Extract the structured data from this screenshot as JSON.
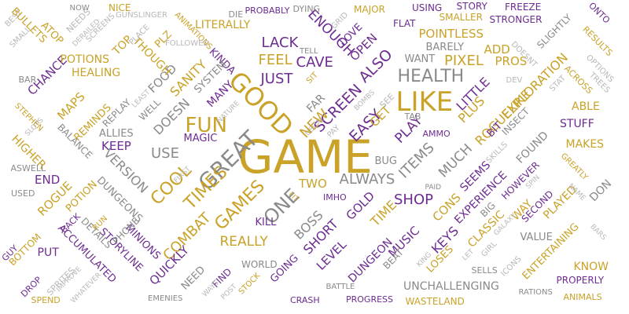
{
  "palette": {
    "gold": "#c9a227",
    "purple": "#6c2c91",
    "gray": "#8a8a8a",
    "lightgray": "#b8b8b8"
  },
  "words": [
    {
      "text": "GAME",
      "color": "gold"
    },
    {
      "text": "LIKE",
      "color": "gold"
    },
    {
      "text": "HEALTH",
      "color": "gray"
    },
    {
      "text": "GOOD",
      "color": "gold"
    },
    {
      "text": "FUN",
      "color": "gold"
    },
    {
      "text": "GREAT",
      "color": "gray"
    },
    {
      "text": "JUST",
      "color": "purple"
    },
    {
      "text": "FEEL",
      "color": "gold"
    },
    {
      "text": "LACK",
      "color": "purple"
    },
    {
      "text": "CAVE",
      "color": "purple"
    },
    {
      "text": "ENOUGH",
      "color": "purple"
    },
    {
      "text": "PIXEL",
      "color": "gold"
    },
    {
      "text": "POINTLESS",
      "color": "gold"
    },
    {
      "text": "WANT",
      "color": "gray"
    },
    {
      "text": "ADD",
      "color": "gold"
    },
    {
      "text": "PROS",
      "color": "gold"
    },
    {
      "text": "SCREEN",
      "color": "purple"
    },
    {
      "text": "ALSO",
      "color": "purple"
    },
    {
      "text": "EASY",
      "color": "purple"
    },
    {
      "text": "ALWAYS",
      "color": "gray"
    },
    {
      "text": "TWO",
      "color": "gold"
    },
    {
      "text": "SHOP",
      "color": "purple"
    },
    {
      "text": "USE",
      "color": "gray"
    },
    {
      "text": "KEEP",
      "color": "purple"
    },
    {
      "text": "MAGIC",
      "color": "purple"
    },
    {
      "text": "ALLIES",
      "color": "gray"
    },
    {
      "text": "COOL",
      "color": "gold"
    },
    {
      "text": "TIMES",
      "color": "gold"
    },
    {
      "text": "GAMES",
      "color": "gold"
    },
    {
      "text": "ONE",
      "color": "gray"
    },
    {
      "text": "BOSS",
      "color": "gray"
    },
    {
      "text": "REALLY",
      "color": "gold"
    },
    {
      "text": "KILL",
      "color": "purple"
    },
    {
      "text": "COMBAT",
      "color": "gold"
    },
    {
      "text": "QUICKLY",
      "color": "purple"
    },
    {
      "text": "VERSION",
      "color": "gray"
    },
    {
      "text": "DUNGEONS",
      "color": "gray"
    },
    {
      "text": "POTION",
      "color": "gold"
    },
    {
      "text": "ROGUE",
      "color": "gold"
    },
    {
      "text": "END",
      "color": "purple"
    },
    {
      "text": "HIGHER",
      "color": "gold"
    },
    {
      "text": "BALANCE",
      "color": "gray"
    },
    {
      "text": "CHANCE",
      "color": "purple"
    },
    {
      "text": "POTIONS",
      "color": "gold"
    },
    {
      "text": "HEALING",
      "color": "gold"
    },
    {
      "text": "MAPS",
      "color": "gold"
    },
    {
      "text": "REMINDS",
      "color": "gold"
    },
    {
      "text": "REPLAY",
      "color": "gray"
    },
    {
      "text": "WELL",
      "color": "gray"
    },
    {
      "text": "DOESN",
      "color": "gray"
    },
    {
      "text": "FOOD",
      "color": "gray"
    },
    {
      "text": "SANITY",
      "color": "gold"
    },
    {
      "text": "MANY",
      "color": "purple"
    },
    {
      "text": "THOUGH",
      "color": "gold"
    },
    {
      "text": "LITERALLY",
      "color": "gold"
    },
    {
      "text": "KINDA",
      "color": "purple"
    },
    {
      "text": "SYSTEM",
      "color": "gray"
    },
    {
      "text": "ITEMS",
      "color": "gray"
    },
    {
      "text": "MUCH",
      "color": "gray"
    },
    {
      "text": "PLAY",
      "color": "purple"
    },
    {
      "text": "LITTLE",
      "color": "purple"
    },
    {
      "text": "PLUS",
      "color": "gold"
    },
    {
      "text": "ROGUELIKE",
      "color": "gold"
    },
    {
      "text": "EXPLORATION",
      "color": "gold"
    },
    {
      "text": "STUFF",
      "color": "purple"
    },
    {
      "text": "ABLE",
      "color": "gold"
    },
    {
      "text": "MAKES",
      "color": "gold"
    },
    {
      "text": "FOUND",
      "color": "gray"
    },
    {
      "text": "SLIGHTLY",
      "color": "gray"
    },
    {
      "text": "BARELY",
      "color": "gray"
    },
    {
      "text": "EXPERIENCE",
      "color": "purple"
    },
    {
      "text": "SEEMS",
      "color": "purple"
    },
    {
      "text": "CONS",
      "color": "gold"
    },
    {
      "text": "HOWEVER",
      "color": "purple"
    },
    {
      "text": "SECOND",
      "color": "purple"
    },
    {
      "text": "PLAYED",
      "color": "gold"
    },
    {
      "text": "WAY",
      "color": "gold"
    },
    {
      "text": "CLASSIC",
      "color": "gold"
    },
    {
      "text": "VALUE",
      "color": "gray"
    },
    {
      "text": "DON",
      "color": "gray"
    },
    {
      "text": "ENTERTAINING",
      "color": "gold"
    },
    {
      "text": "KNOW",
      "color": "gold"
    },
    {
      "text": "LEVEL",
      "color": "purple"
    },
    {
      "text": "SHORT",
      "color": "purple"
    },
    {
      "text": "GOLD",
      "color": "purple"
    },
    {
      "text": "TIME",
      "color": "gold"
    },
    {
      "text": "DUNGEON",
      "color": "purple"
    },
    {
      "text": "MUSIC",
      "color": "purple"
    },
    {
      "text": "BEAT",
      "color": "gray"
    },
    {
      "text": "KEYS",
      "color": "purple"
    },
    {
      "text": "LOSES",
      "color": "gold"
    },
    {
      "text": "UNCHALLENGING",
      "color": "gray"
    },
    {
      "text": "WASTELAND",
      "color": "gold"
    },
    {
      "text": "PROGRESS",
      "color": "purple"
    },
    {
      "text": "STORYLINE",
      "color": "purple"
    },
    {
      "text": "MINIONS",
      "color": "purple"
    },
    {
      "text": "PHONE",
      "color": "gray"
    },
    {
      "text": "DETAILS",
      "color": "gray"
    },
    {
      "text": "ACCUMULATED",
      "color": "purple"
    },
    {
      "text": "PUT",
      "color": "purple"
    },
    {
      "text": "BUG",
      "color": "gray"
    },
    {
      "text": "PAID",
      "color": "gray"
    },
    {
      "text": "IMHO",
      "color": "purple"
    },
    {
      "text": "FIT",
      "color": "gold"
    },
    {
      "text": "GOING",
      "color": "purple"
    },
    {
      "text": "WORLD",
      "color": "gray"
    },
    {
      "text": "FIND",
      "color": "purple"
    },
    {
      "text": "NEED",
      "color": "gray"
    },
    {
      "text": "WAYS",
      "color": "lightgray"
    },
    {
      "text": "POST",
      "color": "lightgray"
    },
    {
      "text": "STOCK",
      "color": "gold"
    },
    {
      "text": "CRASH",
      "color": "purple"
    },
    {
      "text": "BATTLE",
      "color": "gray"
    },
    {
      "text": "EMENIES",
      "color": "gray"
    },
    {
      "text": "SPEND",
      "color": "gold"
    },
    {
      "text": "DROP",
      "color": "purple"
    },
    {
      "text": "SPRITES",
      "color": "lightgray"
    },
    {
      "text": "IMPROVE",
      "color": "lightgray"
    },
    {
      "text": "WHATEVER",
      "color": "lightgray"
    },
    {
      "text": "BOTTOM",
      "color": "gold"
    },
    {
      "text": "GUY",
      "color": "purple"
    },
    {
      "text": "USED",
      "color": "gray"
    },
    {
      "text": "ASWELL",
      "color": "gray"
    },
    {
      "text": "BACK",
      "color": "purple"
    },
    {
      "text": "RUN",
      "color": "gold"
    },
    {
      "text": "STEPHEN",
      "color": "gold"
    },
    {
      "text": "SLOTS",
      "color": "lightgray"
    },
    {
      "text": "BAR",
      "color": "gray"
    },
    {
      "text": "SMALL",
      "color": "lightgray"
    },
    {
      "text": "BEST",
      "color": "lightgray"
    },
    {
      "text": "BULLETS",
      "color": "gold"
    },
    {
      "text": "ATOP",
      "color": "gold"
    },
    {
      "text": "NEEDS",
      "color": "lightgray"
    },
    {
      "text": "DERAILED",
      "color": "lightgray"
    },
    {
      "text": "SCREENS",
      "color": "lightgray"
    },
    {
      "text": "NOW",
      "color": "gray"
    },
    {
      "text": "NICE",
      "color": "gold"
    },
    {
      "text": "GUNSLINGER",
      "color": "lightgray"
    },
    {
      "text": "PLACE",
      "color": "lightgray"
    },
    {
      "text": "TOP",
      "color": "gold"
    },
    {
      "text": "PLZ",
      "color": "gold"
    },
    {
      "text": "ANIMATIONS",
      "color": "gold"
    },
    {
      "text": "FOLLOWED",
      "color": "lightgray"
    },
    {
      "text": "DIE",
      "color": "gray"
    },
    {
      "text": "PROBABLY",
      "color": "purple"
    },
    {
      "text": "DYING",
      "color": "gray"
    },
    {
      "text": "GRID",
      "color": "lightgray"
    },
    {
      "text": "LOVE",
      "color": "purple"
    },
    {
      "text": "OPEN",
      "color": "purple"
    },
    {
      "text": "TELL",
      "color": "gray"
    },
    {
      "text": "MAJOR",
      "color": "gold"
    },
    {
      "text": "FLAT",
      "color": "purple"
    },
    {
      "text": "USING",
      "color": "purple"
    },
    {
      "text": "STORY",
      "color": "purple"
    },
    {
      "text": "FREEZE",
      "color": "purple"
    },
    {
      "text": "SMALLER",
      "color": "gold"
    },
    {
      "text": "STRONGER",
      "color": "purple"
    },
    {
      "text": "ONTO",
      "color": "purple"
    },
    {
      "text": "RESULTS",
      "color": "gold"
    },
    {
      "text": "OPTIONS",
      "color": "lightgray"
    },
    {
      "text": "DOESNT",
      "color": "lightgray"
    },
    {
      "text": "ACROSS",
      "color": "gold"
    },
    {
      "text": "TREES",
      "color": "lightgray"
    },
    {
      "text": "STAT",
      "color": "lightgray"
    },
    {
      "text": "DEV",
      "color": "lightgray"
    },
    {
      "text": "INSECT",
      "color": "gray"
    },
    {
      "text": "BIT",
      "color": "purple"
    },
    {
      "text": "SKILLS",
      "color": "lightgray"
    },
    {
      "text": "SPIN",
      "color": "lightgray"
    },
    {
      "text": "GREATLY",
      "color": "gold"
    },
    {
      "text": "NAME",
      "color": "lightgray"
    },
    {
      "text": "BIG",
      "color": "gray"
    },
    {
      "text": "GALAXY",
      "color": "lightgray"
    },
    {
      "text": "GIRL",
      "color": "lightgray"
    },
    {
      "text": "LET",
      "color": "lightgray"
    },
    {
      "text": "BARS",
      "color": "lightgray"
    },
    {
      "text": "SELLS",
      "color": "gray"
    },
    {
      "text": "ICONS",
      "color": "lightgray"
    },
    {
      "text": "PROPERLY",
      "color": "purple"
    },
    {
      "text": "RATIONS",
      "color": "gray"
    },
    {
      "text": "ANIMALS",
      "color": "gold"
    },
    {
      "text": "KING",
      "color": "lightgray"
    },
    {
      "text": "SIT",
      "color": "gold"
    },
    {
      "text": "FAR",
      "color": "gray"
    },
    {
      "text": "NEW",
      "color": "gold"
    },
    {
      "text": "GET",
      "color": "gold"
    },
    {
      "text": "SEE",
      "color": "lightgray"
    },
    {
      "text": "BOMBS",
      "color": "lightgray"
    },
    {
      "text": "TAB",
      "color": "gray"
    },
    {
      "text": "AMMO",
      "color": "purple"
    },
    {
      "text": "USUAL",
      "color": "lightgray"
    },
    {
      "text": "PAY",
      "color": "lightgray"
    },
    {
      "text": "NATURE",
      "color": "lightgray"
    },
    {
      "text": "LEAST",
      "color": "lightgray"
    },
    {
      "text": "FIRST",
      "color": "lightgray"
    }
  ]
}
